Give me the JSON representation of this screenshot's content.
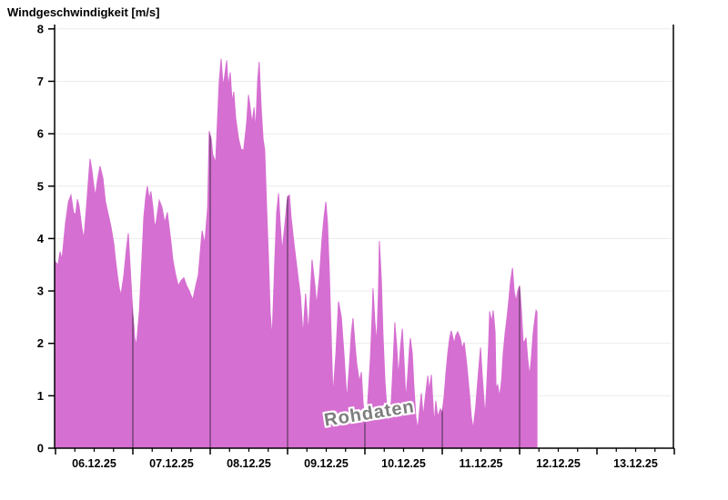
{
  "page": {
    "title": "Windgeschwindigkeit [m/s]",
    "watermark": "Rohdaten"
  },
  "chart_data": {
    "type": "area",
    "title": "Windgeschwindigkeit [m/s]",
    "ylabel": "Windgeschwindigkeit [m/s]",
    "xlabel": "",
    "ylim": [
      0,
      8
    ],
    "yticks": [
      0,
      1,
      2,
      3,
      4,
      5,
      6,
      7,
      8
    ],
    "x_tick_labels": [
      "06.12.25",
      "07.12.25",
      "08.12.25",
      "09.12.25",
      "10.12.25",
      "11.12.25",
      "12.12.25",
      "13.12.25"
    ],
    "x_axis_span_days": 8,
    "x_minor_tick_hours": 6,
    "grid": "horizontal-light",
    "legend": "none",
    "watermark": "Rohdaten",
    "day_boundary_lines_hours": [
      24,
      48,
      72,
      96,
      120,
      144
    ],
    "colors": {
      "fill": "#d66fd2",
      "day_line": "#5a3a5e",
      "grid": "#ececec",
      "axis": "#000000",
      "watermark_text": "#7d7d7d"
    },
    "series": [
      {
        "name": "Rohdaten",
        "unit": "m/s",
        "x_unit": "hours_since_06.12.25_00:00",
        "points": [
          [
            0.0,
            3.55
          ],
          [
            0.8,
            3.5
          ],
          [
            1.4,
            3.75
          ],
          [
            2.0,
            3.6
          ],
          [
            3.1,
            4.3
          ],
          [
            4.0,
            4.7
          ],
          [
            4.8,
            4.83
          ],
          [
            5.6,
            4.5
          ],
          [
            6.2,
            4.45
          ],
          [
            6.8,
            4.75
          ],
          [
            7.3,
            4.62
          ],
          [
            8.2,
            4.2
          ],
          [
            8.8,
            3.99
          ],
          [
            9.6,
            4.6
          ],
          [
            10.2,
            5.1
          ],
          [
            10.7,
            5.52
          ],
          [
            11.3,
            5.3
          ],
          [
            11.9,
            5.0
          ],
          [
            12.4,
            4.81
          ],
          [
            13.0,
            5.1
          ],
          [
            13.8,
            5.38
          ],
          [
            14.7,
            5.15
          ],
          [
            15.5,
            4.7
          ],
          [
            16.4,
            4.45
          ],
          [
            17.2,
            4.23
          ],
          [
            18.1,
            3.9
          ],
          [
            18.6,
            3.6
          ],
          [
            19.2,
            3.3
          ],
          [
            19.8,
            3.05
          ],
          [
            20.3,
            2.92
          ],
          [
            21.2,
            3.3
          ],
          [
            22.0,
            3.8
          ],
          [
            22.6,
            4.1
          ],
          [
            23.2,
            3.4
          ],
          [
            24.0,
            2.57
          ],
          [
            24.6,
            2.1
          ],
          [
            25.1,
            1.96
          ],
          [
            26.0,
            2.6
          ],
          [
            26.8,
            3.6
          ],
          [
            27.4,
            4.4
          ],
          [
            28.0,
            4.8
          ],
          [
            28.5,
            5.0
          ],
          [
            29.1,
            4.75
          ],
          [
            29.6,
            4.9
          ],
          [
            30.2,
            4.6
          ],
          [
            30.8,
            4.2
          ],
          [
            31.3,
            4.35
          ],
          [
            32.2,
            4.73
          ],
          [
            33.0,
            4.6
          ],
          [
            33.9,
            4.3
          ],
          [
            34.7,
            4.5
          ],
          [
            35.3,
            4.2
          ],
          [
            35.9,
            3.9
          ],
          [
            36.4,
            3.6
          ],
          [
            37.3,
            3.3
          ],
          [
            38.1,
            3.1
          ],
          [
            39.0,
            3.2
          ],
          [
            39.8,
            3.25
          ],
          [
            40.7,
            3.1
          ],
          [
            41.5,
            3.0
          ],
          [
            42.6,
            2.83
          ],
          [
            43.5,
            3.1
          ],
          [
            44.3,
            3.3
          ],
          [
            45.5,
            4.15
          ],
          [
            46.3,
            3.9
          ],
          [
            47.2,
            4.6
          ],
          [
            47.7,
            6.05
          ],
          [
            48.3,
            5.9
          ],
          [
            48.8,
            5.6
          ],
          [
            49.7,
            5.45
          ],
          [
            50.3,
            6.3
          ],
          [
            50.8,
            7.0
          ],
          [
            51.4,
            7.43
          ],
          [
            52.0,
            6.9
          ],
          [
            52.5,
            7.1
          ],
          [
            53.1,
            7.4
          ],
          [
            53.6,
            6.9
          ],
          [
            54.2,
            7.17
          ],
          [
            54.8,
            6.6
          ],
          [
            55.3,
            6.8
          ],
          [
            55.9,
            6.3
          ],
          [
            56.8,
            5.9
          ],
          [
            57.6,
            5.7
          ],
          [
            58.4,
            5.69
          ],
          [
            59.3,
            6.2
          ],
          [
            59.9,
            6.74
          ],
          [
            60.4,
            6.5
          ],
          [
            61.0,
            6.2
          ],
          [
            61.6,
            6.5
          ],
          [
            62.1,
            6.05
          ],
          [
            62.7,
            7.0
          ],
          [
            63.2,
            7.37
          ],
          [
            63.8,
            6.5
          ],
          [
            64.4,
            5.9
          ],
          [
            64.9,
            5.69
          ],
          [
            65.5,
            4.6
          ],
          [
            66.1,
            3.6
          ],
          [
            66.6,
            2.6
          ],
          [
            67.2,
            2.1
          ],
          [
            68.0,
            3.5
          ],
          [
            68.6,
            4.5
          ],
          [
            69.2,
            4.86
          ],
          [
            69.7,
            4.3
          ],
          [
            70.3,
            3.76
          ],
          [
            71.2,
            4.3
          ],
          [
            72.0,
            4.8
          ],
          [
            72.6,
            4.83
          ],
          [
            73.1,
            4.4
          ],
          [
            74.0,
            3.9
          ],
          [
            74.8,
            3.5
          ],
          [
            75.4,
            3.2
          ],
          [
            76.0,
            2.9
          ],
          [
            76.8,
            2.15
          ],
          [
            77.6,
            2.95
          ],
          [
            78.5,
            2.2
          ],
          [
            79.6,
            3.6
          ],
          [
            80.5,
            3.1
          ],
          [
            81.0,
            2.72
          ],
          [
            81.9,
            3.3
          ],
          [
            82.7,
            4.0
          ],
          [
            83.3,
            4.4
          ],
          [
            83.9,
            4.7
          ],
          [
            84.4,
            4.3
          ],
          [
            85.0,
            3.3
          ],
          [
            85.6,
            2.0
          ],
          [
            86.1,
            1.0
          ],
          [
            87.0,
            1.8
          ],
          [
            87.8,
            2.8
          ],
          [
            88.7,
            2.5
          ],
          [
            89.5,
            1.8
          ],
          [
            90.4,
            0.92
          ],
          [
            91.2,
            1.6
          ],
          [
            91.8,
            2.2
          ],
          [
            92.3,
            2.48
          ],
          [
            92.9,
            2.0
          ],
          [
            93.5,
            1.6
          ],
          [
            94.3,
            1.27
          ],
          [
            94.9,
            1.45
          ],
          [
            95.4,
            0.9
          ],
          [
            96.0,
            0.45
          ],
          [
            96.8,
            0.8
          ],
          [
            97.7,
            1.7
          ],
          [
            98.3,
            2.6
          ],
          [
            98.5,
            3.05
          ],
          [
            99.1,
            2.4
          ],
          [
            99.7,
            2.0
          ],
          [
            100.2,
            3.0
          ],
          [
            100.5,
            3.95
          ],
          [
            101.1,
            3.2
          ],
          [
            101.6,
            2.2
          ],
          [
            102.2,
            1.3
          ],
          [
            102.8,
            0.75
          ],
          [
            103.3,
            0.45
          ],
          [
            104.2,
            0.9
          ],
          [
            104.8,
            1.7
          ],
          [
            105.3,
            2.4
          ],
          [
            105.9,
            1.9
          ],
          [
            106.4,
            1.35
          ],
          [
            107.0,
            1.9
          ],
          [
            107.6,
            2.28
          ],
          [
            108.1,
            1.7
          ],
          [
            108.7,
            0.92
          ],
          [
            109.3,
            1.4
          ],
          [
            109.8,
            1.9
          ],
          [
            110.1,
            2.1
          ],
          [
            110.7,
            1.8
          ],
          [
            111.2,
            1.2
          ],
          [
            111.8,
            0.6
          ],
          [
            112.4,
            0.35
          ],
          [
            112.9,
            0.7
          ],
          [
            113.5,
            1.05
          ],
          [
            114.1,
            0.6
          ],
          [
            114.6,
            0.9
          ],
          [
            115.5,
            1.38
          ],
          [
            116.0,
            1.1
          ],
          [
            116.6,
            1.4
          ],
          [
            117.5,
            0.45
          ],
          [
            118.0,
            0.9
          ],
          [
            118.6,
            0.6
          ],
          [
            119.4,
            0.75
          ],
          [
            120.0,
            0.69
          ],
          [
            120.6,
            1.0
          ],
          [
            121.1,
            1.4
          ],
          [
            121.7,
            1.8
          ],
          [
            122.3,
            2.1
          ],
          [
            122.8,
            2.24
          ],
          [
            123.7,
            2.0
          ],
          [
            124.2,
            2.15
          ],
          [
            124.8,
            2.22
          ],
          [
            125.6,
            2.1
          ],
          [
            126.2,
            1.9
          ],
          [
            126.8,
            2.02
          ],
          [
            127.6,
            1.6
          ],
          [
            128.5,
            1.0
          ],
          [
            129.0,
            0.6
          ],
          [
            129.6,
            0.37
          ],
          [
            130.4,
            0.8
          ],
          [
            131.3,
            1.5
          ],
          [
            131.9,
            1.92
          ],
          [
            132.4,
            1.4
          ],
          [
            133.3,
            0.6
          ],
          [
            133.8,
            1.2
          ],
          [
            134.4,
            2.0
          ],
          [
            134.7,
            2.61
          ],
          [
            135.3,
            2.4
          ],
          [
            135.8,
            2.63
          ],
          [
            136.4,
            2.2
          ],
          [
            136.7,
            1.15
          ],
          [
            137.2,
            1.21
          ],
          [
            137.8,
            0.98
          ],
          [
            138.4,
            1.3
          ],
          [
            138.9,
            1.8
          ],
          [
            139.5,
            2.2
          ],
          [
            140.1,
            2.5
          ],
          [
            140.6,
            2.8
          ],
          [
            141.2,
            3.2
          ],
          [
            141.8,
            3.44
          ],
          [
            142.3,
            3.0
          ],
          [
            142.9,
            2.8
          ],
          [
            143.4,
            3.0
          ],
          [
            144.0,
            3.1
          ],
          [
            144.6,
            2.6
          ],
          [
            145.1,
            2.02
          ],
          [
            145.7,
            2.05
          ],
          [
            146.0,
            2.11
          ],
          [
            146.5,
            1.7
          ],
          [
            147.1,
            1.38
          ],
          [
            147.6,
            1.7
          ],
          [
            148.2,
            2.2
          ],
          [
            148.8,
            2.5
          ],
          [
            149.1,
            2.63
          ],
          [
            149.4,
            2.6
          ]
        ]
      }
    ]
  }
}
